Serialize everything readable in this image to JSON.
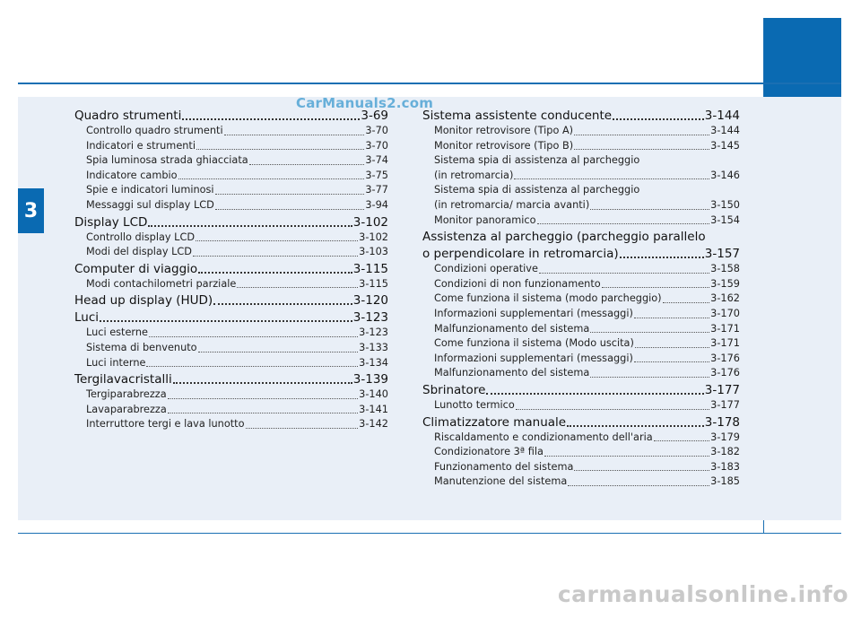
{
  "chapter_number": "3",
  "watermark": "CarManuals2.com",
  "footer_watermark": "carmanualsonline.info",
  "left_column": [
    {
      "type": "section",
      "title": "Quadro strumenti",
      "page": "3-69"
    },
    {
      "type": "item",
      "title": "Controllo quadro strumenti",
      "page": "3-70"
    },
    {
      "type": "item",
      "title": "Indicatori e strumenti",
      "page": "3-70"
    },
    {
      "type": "item",
      "title": "Spia luminosa strada ghiacciata",
      "page": "3-74"
    },
    {
      "type": "item",
      "title": "Indicatore cambio",
      "page": "3-75"
    },
    {
      "type": "item",
      "title": "Spie e indicatori luminosi",
      "page": "3-77"
    },
    {
      "type": "item",
      "title": "Messaggi sul display LCD",
      "page": "3-94"
    },
    {
      "type": "section",
      "title": "Display LCD",
      "page": "3-102"
    },
    {
      "type": "item",
      "title": "Controllo display LCD",
      "page": "3-102"
    },
    {
      "type": "item",
      "title": "Modi del display LCD",
      "page": "3-103"
    },
    {
      "type": "section",
      "title": "Computer di viaggio",
      "page": "3-115"
    },
    {
      "type": "item",
      "title": "Modi contachilometri parziale",
      "page": "3-115"
    },
    {
      "type": "section",
      "title": "Head up display (HUD)",
      "page": "3-120"
    },
    {
      "type": "section",
      "title": "Luci",
      "page": "3-123"
    },
    {
      "type": "item",
      "title": "Luci esterne",
      "page": "3-123"
    },
    {
      "type": "item",
      "title": "Sistema di benvenuto",
      "page": "3-133"
    },
    {
      "type": "item",
      "title": "Luci interne",
      "page": "3-134"
    },
    {
      "type": "section",
      "title": "Tergilavacristalli",
      "page": "3-139"
    },
    {
      "type": "item",
      "title": "Tergiparabrezza",
      "page": "3-140"
    },
    {
      "type": "item",
      "title": "Lavaparabrezza",
      "page": "3-141"
    },
    {
      "type": "item",
      "title": "Interruttore tergi e lava lunotto",
      "page": "3-142"
    }
  ],
  "right_column": [
    {
      "type": "section",
      "title": "Sistema assistente conducente",
      "page": "3-144"
    },
    {
      "type": "item",
      "title": "Monitor retrovisore (Tipo A)",
      "page": "3-144"
    },
    {
      "type": "item",
      "title": "Monitor retrovisore (Tipo B)",
      "page": "3-145"
    },
    {
      "type": "text",
      "title": "Sistema spia di assistenza al parcheggio"
    },
    {
      "type": "item",
      "title": "(in retromarcia)",
      "page": "3-146"
    },
    {
      "type": "text",
      "title": "Sistema spia di assistenza al parcheggio"
    },
    {
      "type": "item",
      "title": "(in retromarcia/ marcia avanti)",
      "page": "3-150"
    },
    {
      "type": "item",
      "title": "Monitor panoramico",
      "page": "3-154"
    },
    {
      "type": "section-text",
      "title": "Assistenza al parcheggio (parcheggio parallelo"
    },
    {
      "type": "section",
      "title": "o perpendicolare in retromarcia)",
      "page": "3-157"
    },
    {
      "type": "item",
      "title": "Condizioni operative",
      "page": "3-158"
    },
    {
      "type": "item",
      "title": "Condizioni di non funzionamento",
      "page": "3-159"
    },
    {
      "type": "item",
      "title": "Come funziona il sistema (modo parcheggio)",
      "page": "3-162"
    },
    {
      "type": "item",
      "title": "Informazioni supplementari (messaggi)",
      "page": "3-170"
    },
    {
      "type": "item",
      "title": "Malfunzionamento del sistema",
      "page": "3-171"
    },
    {
      "type": "item",
      "title": "Come funziona il sistema (Modo uscita)",
      "page": "3-171"
    },
    {
      "type": "item",
      "title": "Informazioni supplementari (messaggi)",
      "page": "3-176"
    },
    {
      "type": "item",
      "title": "Malfunzionamento del sistema",
      "page": "3-176"
    },
    {
      "type": "section",
      "title": "Sbrinatore",
      "page": "3-177"
    },
    {
      "type": "item",
      "title": "Lunotto termico",
      "page": "3-177"
    },
    {
      "type": "section",
      "title": "Climatizzatore manuale",
      "page": "3-178"
    },
    {
      "type": "item",
      "title": "Riscaldamento e condizionamento dell'aria",
      "page": "3-179"
    },
    {
      "type": "item",
      "title": "Condizionatore 3ª fila",
      "page": "3-182"
    },
    {
      "type": "item",
      "title": "Funzionamento del sistema",
      "page": "3-183"
    },
    {
      "type": "item",
      "title": "Manutenzione del sistema",
      "page": "3-185"
    }
  ]
}
